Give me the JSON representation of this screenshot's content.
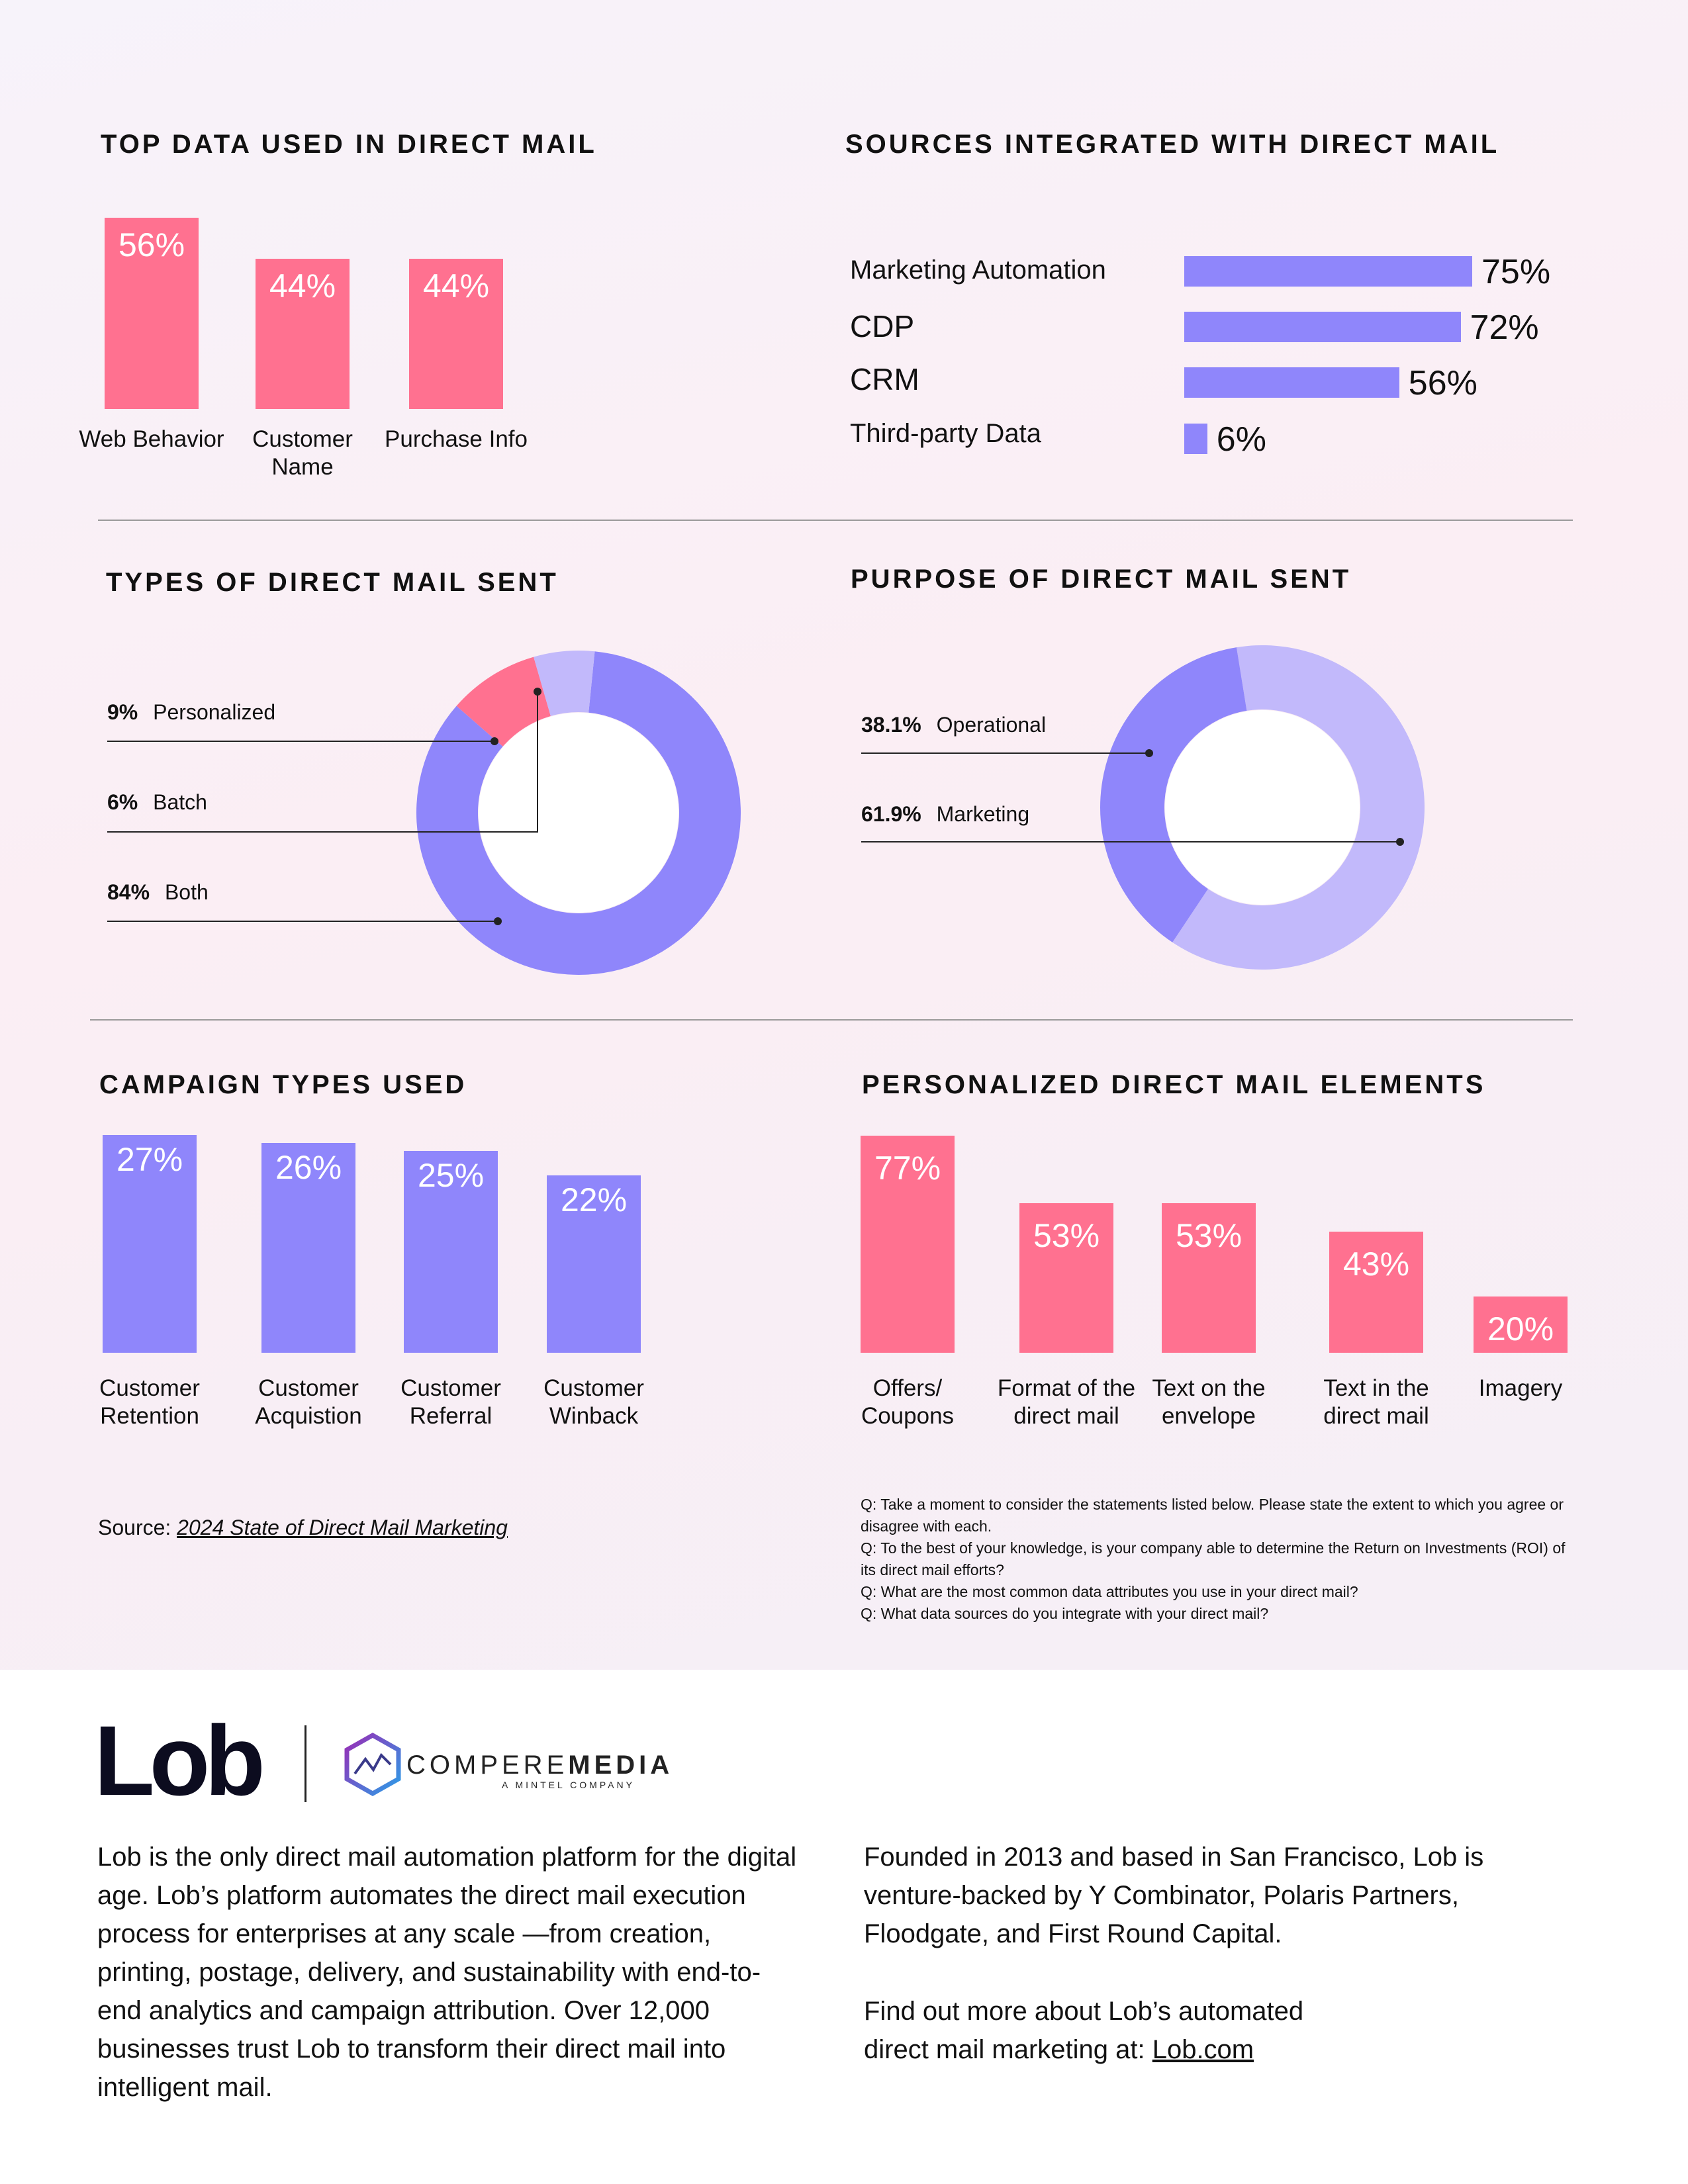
{
  "colors": {
    "pink": "#ff7190",
    "purple": "#8f86fb",
    "lavender": "#c2b9fb"
  },
  "chart_data": [
    {
      "type": "bar",
      "title": "TOP DATA USED IN DIRECT MAIL",
      "categories": [
        "Web Behavior",
        "Customer Name",
        "Purchase Info"
      ],
      "values": [
        56,
        44,
        44
      ],
      "value_labels": [
        "56%",
        "44%",
        "44%"
      ],
      "color": "#ff7190"
    },
    {
      "type": "bar",
      "orientation": "horizontal",
      "title": "SOURCES INTEGRATED WITH DIRECT MAIL",
      "categories": [
        "Marketing Automation",
        "CDP",
        "CRM",
        "Third-party Data"
      ],
      "values": [
        75,
        72,
        56,
        6
      ],
      "value_labels": [
        "75%",
        "72%",
        "56%",
        "6%"
      ],
      "color": "#8f86fb"
    },
    {
      "type": "pie",
      "style": "donut",
      "title": "TYPES OF DIRECT MAIL SENT",
      "labels": [
        "Personalized",
        "Batch",
        "Both"
      ],
      "values": [
        9,
        6,
        84
      ],
      "value_labels": [
        "9%",
        "6%",
        "84%"
      ],
      "colors": [
        "#ff7190",
        "#c2b9fb",
        "#8f86fb"
      ]
    },
    {
      "type": "pie",
      "style": "donut",
      "title": "PURPOSE OF DIRECT MAIL SENT",
      "labels": [
        "Operational",
        "Marketing"
      ],
      "values": [
        38.1,
        61.9
      ],
      "value_labels": [
        "38.1%",
        "61.9%"
      ],
      "colors": [
        "#8f86fb",
        "#c2b9fb"
      ]
    },
    {
      "type": "bar",
      "title": "CAMPAIGN TYPES USED",
      "categories": [
        "Customer Retention",
        "Customer Acquistion",
        "Customer Referral",
        "Customer Winback"
      ],
      "values": [
        27,
        26,
        25,
        22
      ],
      "value_labels": [
        "27%",
        "26%",
        "25%",
        "22%"
      ],
      "color": "#8f86fb"
    },
    {
      "type": "bar",
      "title": "PERSONALIZED DIRECT MAIL ELEMENTS",
      "categories": [
        "Offers/ Coupons",
        "Format of the direct mail",
        "Text on the envelope",
        "Text in the direct mail",
        "Imagery"
      ],
      "values": [
        77,
        53,
        53,
        43,
        20
      ],
      "value_labels": [
        "77%",
        "53%",
        "53%",
        "43%",
        "20%"
      ],
      "color": "#ff7190"
    }
  ],
  "source": {
    "prefix": "Source: ",
    "link": "2024 State of Direct Mail Marketing"
  },
  "questions": [
    "Q: Take a moment to consider the statements listed below. Please state the extent to which you agree or disagree with each.",
    "Q: To the best of your knowledge, is your company able to determine the Return on Investments (ROI) of its direct mail efforts?",
    "Q: What are the most common data attributes you use in your direct mail?",
    "Q: What data sources do you integrate with your direct mail?"
  ],
  "footer": {
    "lob_logo": "Lob",
    "partner_name_light": "COMPERE",
    "partner_name_bold": "MEDIA",
    "partner_tagline": "A MINTEL COMPANY",
    "about_left": "Lob is the only direct mail automation platform for the digital age. Lob’s platform automates the direct mail execution process for enterprises at any scale —from creation, printing, postage, delivery, and sustainability with end-to-end analytics and campaign attribution. Over 12,000 businesses trust Lob to transform their direct mail into intelligent mail.",
    "about_right_1": "Founded in 2013 and based in San Francisco, Lob is venture-backed by Y Combinator, Polaris Partners, Floodgate, and First Round Capital.",
    "about_right_2": "Find out more about Lob’s automated direct mail marketing at: ",
    "link": "Lob.com"
  }
}
